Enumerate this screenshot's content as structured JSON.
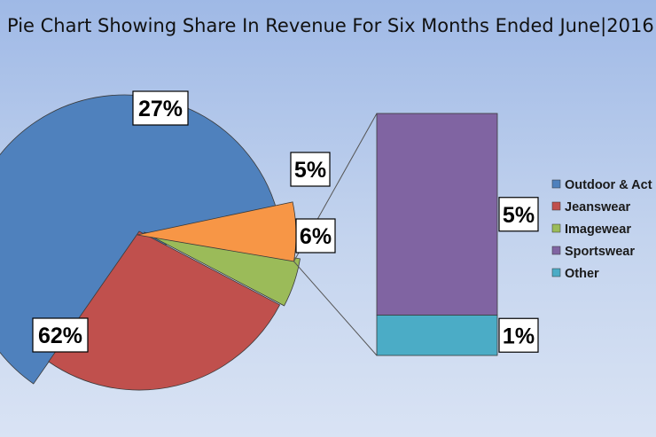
{
  "chart_data": {
    "type": "pie",
    "subtype": "bar-of-pie",
    "title": "Pie Chart Showing Share In Revenue For Six Months Ended June|2016",
    "pie": [
      {
        "name": "Outdoor & Action Sports",
        "value": 62,
        "label": "62%",
        "color": "#4f81bd"
      },
      {
        "name": "Jeanswear",
        "value": 27,
        "label": "27%",
        "color": "#c0504d"
      },
      {
        "name": "Imagewear",
        "value": 5,
        "label": "5%",
        "color": "#9bbb59"
      },
      {
        "name": "Other (bar)",
        "value": 6,
        "label": "6%",
        "color": "#f79646"
      }
    ],
    "bar": [
      {
        "name": "Sportswear",
        "value": 5,
        "label": "5%",
        "color": "#8064a2"
      },
      {
        "name": "Other",
        "value": 1,
        "label": "1%",
        "color": "#4bacc6"
      }
    ],
    "legend": {
      "position": "right",
      "items": [
        {
          "label": "Outdoor & Act",
          "color": "#4f81bd"
        },
        {
          "label": "Jeanswear",
          "color": "#c0504d"
        },
        {
          "label": "Imagewear",
          "color": "#9bbb59"
        },
        {
          "label": "Sportswear",
          "color": "#8064a2"
        },
        {
          "label": "Other",
          "color": "#4bacc6"
        }
      ]
    }
  }
}
